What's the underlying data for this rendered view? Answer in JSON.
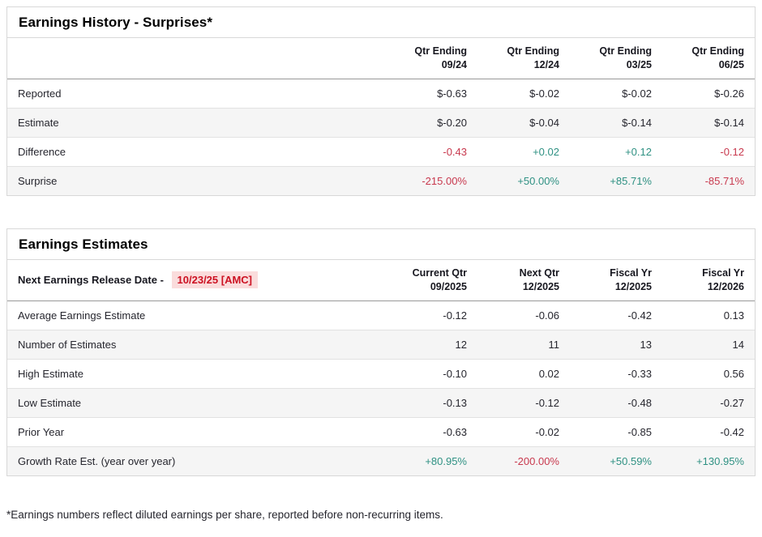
{
  "colors": {
    "positive": "#2f9183",
    "negative": "#c8394e",
    "release_date_text": "#cc1122",
    "release_date_bg": "#fadcdc"
  },
  "history": {
    "title": "Earnings History - Surprises*",
    "columns": [
      {
        "line1": "Qtr Ending",
        "line2": "09/24"
      },
      {
        "line1": "Qtr Ending",
        "line2": "12/24"
      },
      {
        "line1": "Qtr Ending",
        "line2": "03/25"
      },
      {
        "line1": "Qtr Ending",
        "line2": "06/25"
      }
    ],
    "rows": [
      {
        "label": "Reported",
        "values": [
          {
            "text": "$-0.63",
            "tone": "neutral"
          },
          {
            "text": "$-0.02",
            "tone": "neutral"
          },
          {
            "text": "$-0.02",
            "tone": "neutral"
          },
          {
            "text": "$-0.26",
            "tone": "neutral"
          }
        ]
      },
      {
        "label": "Estimate",
        "values": [
          {
            "text": "$-0.20",
            "tone": "neutral"
          },
          {
            "text": "$-0.04",
            "tone": "neutral"
          },
          {
            "text": "$-0.14",
            "tone": "neutral"
          },
          {
            "text": "$-0.14",
            "tone": "neutral"
          }
        ]
      },
      {
        "label": "Difference",
        "values": [
          {
            "text": "-0.43",
            "tone": "negative"
          },
          {
            "text": "+0.02",
            "tone": "positive"
          },
          {
            "text": "+0.12",
            "tone": "positive"
          },
          {
            "text": "-0.12",
            "tone": "negative"
          }
        ]
      },
      {
        "label": "Surprise",
        "values": [
          {
            "text": "-215.00%",
            "tone": "negative"
          },
          {
            "text": "+50.00%",
            "tone": "positive"
          },
          {
            "text": "+85.71%",
            "tone": "positive"
          },
          {
            "text": "-85.71%",
            "tone": "negative"
          }
        ]
      }
    ]
  },
  "estimates": {
    "title": "Earnings Estimates",
    "release_label": "Next Earnings Release Date -",
    "release_date": "10/23/25 [AMC]",
    "columns": [
      {
        "line1": "Current Qtr",
        "line2": "09/2025"
      },
      {
        "line1": "Next Qtr",
        "line2": "12/2025"
      },
      {
        "line1": "Fiscal Yr",
        "line2": "12/2025"
      },
      {
        "line1": "Fiscal Yr",
        "line2": "12/2026"
      }
    ],
    "rows": [
      {
        "label": "Average Earnings Estimate",
        "values": [
          {
            "text": "-0.12",
            "tone": "neutral"
          },
          {
            "text": "-0.06",
            "tone": "neutral"
          },
          {
            "text": "-0.42",
            "tone": "neutral"
          },
          {
            "text": "0.13",
            "tone": "neutral"
          }
        ]
      },
      {
        "label": "Number of Estimates",
        "values": [
          {
            "text": "12",
            "tone": "neutral"
          },
          {
            "text": "11",
            "tone": "neutral"
          },
          {
            "text": "13",
            "tone": "neutral"
          },
          {
            "text": "14",
            "tone": "neutral"
          }
        ]
      },
      {
        "label": "High Estimate",
        "values": [
          {
            "text": "-0.10",
            "tone": "neutral"
          },
          {
            "text": "0.02",
            "tone": "neutral"
          },
          {
            "text": "-0.33",
            "tone": "neutral"
          },
          {
            "text": "0.56",
            "tone": "neutral"
          }
        ]
      },
      {
        "label": "Low Estimate",
        "values": [
          {
            "text": "-0.13",
            "tone": "neutral"
          },
          {
            "text": "-0.12",
            "tone": "neutral"
          },
          {
            "text": "-0.48",
            "tone": "neutral"
          },
          {
            "text": "-0.27",
            "tone": "neutral"
          }
        ]
      },
      {
        "label": "Prior Year",
        "values": [
          {
            "text": "-0.63",
            "tone": "neutral"
          },
          {
            "text": "-0.02",
            "tone": "neutral"
          },
          {
            "text": "-0.85",
            "tone": "neutral"
          },
          {
            "text": "-0.42",
            "tone": "neutral"
          }
        ]
      },
      {
        "label": "Growth Rate Est. (year over year)",
        "values": [
          {
            "text": "+80.95%",
            "tone": "positive"
          },
          {
            "text": "-200.00%",
            "tone": "negative"
          },
          {
            "text": "+50.59%",
            "tone": "positive"
          },
          {
            "text": "+130.95%",
            "tone": "positive"
          }
        ]
      }
    ]
  },
  "footnote": "*Earnings numbers reflect diluted earnings per share, reported before non-recurring items."
}
